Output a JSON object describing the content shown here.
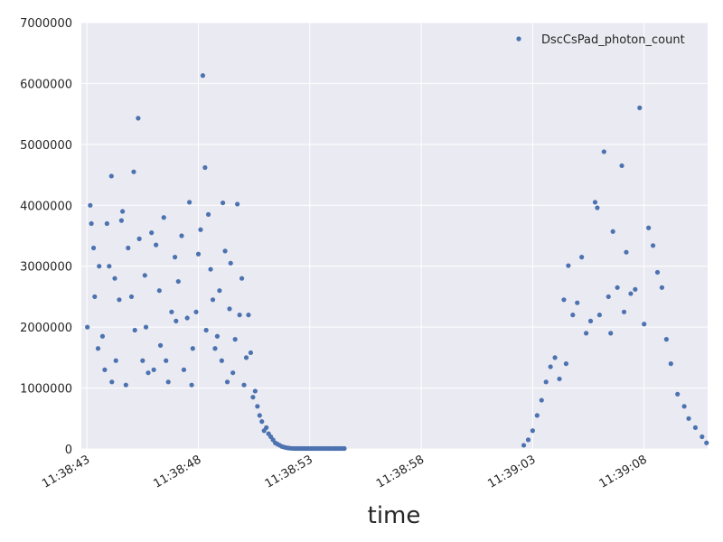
{
  "chart_data": {
    "type": "scatter",
    "title": "",
    "xlabel": "time",
    "ylabel": "",
    "grid": true,
    "legend_placement": "top-right",
    "x_ticks": [
      {
        "t": 0,
        "label": "11:38:43"
      },
      {
        "t": 5,
        "label": "11:38:48"
      },
      {
        "t": 10,
        "label": "11:38:53"
      },
      {
        "t": 15,
        "label": "11:38:58"
      },
      {
        "t": 20,
        "label": "11:39:03"
      },
      {
        "t": 25,
        "label": "11:39:08"
      }
    ],
    "y_ticks": [
      0,
      1000000,
      2000000,
      3000000,
      4000000,
      5000000,
      6000000,
      7000000
    ],
    "y_tick_labels": [
      "0",
      "1000000",
      "2000000",
      "3000000",
      "4000000",
      "5000000",
      "6000000",
      "7000000"
    ],
    "ylim": [
      0,
      7000000
    ],
    "series": [
      {
        "name": "DscCsPad_photon_count",
        "color": "#4c72b0",
        "x_seconds": [
          0.02,
          0.15,
          0.2,
          0.3,
          0.35,
          0.5,
          0.55,
          0.7,
          0.8,
          0.9,
          1.0,
          1.1,
          1.12,
          1.25,
          1.3,
          1.45,
          1.55,
          1.6,
          1.75,
          1.85,
          2.0,
          2.1,
          2.15,
          2.3,
          2.35,
          2.5,
          2.6,
          2.65,
          2.75,
          2.9,
          3.0,
          3.1,
          3.25,
          3.3,
          3.45,
          3.55,
          3.65,
          3.8,
          3.95,
          4.0,
          4.1,
          4.25,
          4.35,
          4.5,
          4.6,
          4.7,
          4.75,
          4.9,
          5.0,
          5.1,
          5.2,
          5.3,
          5.35,
          5.45,
          5.55,
          5.65,
          5.75,
          5.85,
          5.95,
          6.05,
          6.1,
          6.2,
          6.3,
          6.4,
          6.45,
          6.55,
          6.65,
          6.75,
          6.85,
          6.95,
          7.05,
          7.15,
          7.25,
          7.35,
          7.45,
          7.55,
          7.65,
          7.75,
          7.85,
          7.95,
          8.05,
          8.15,
          8.25,
          8.35,
          8.45,
          8.55,
          8.65,
          8.75,
          8.85,
          8.95,
          9.05,
          9.15,
          9.25,
          9.35,
          9.45,
          9.55,
          9.65,
          9.75,
          9.85,
          9.95,
          10.05,
          10.15,
          10.25,
          10.35,
          10.45,
          10.55,
          10.65,
          10.75,
          10.85,
          10.95,
          11.05,
          11.15,
          11.25,
          11.35,
          11.45,
          11.55,
          19.6,
          19.8,
          20.0,
          20.2,
          20.4,
          20.6,
          20.8,
          21.0,
          21.2,
          21.4,
          21.5,
          21.6,
          21.8,
          22.0,
          22.2,
          22.4,
          22.6,
          22.8,
          22.9,
          23.0,
          23.2,
          23.4,
          23.5,
          23.6,
          23.8,
          24.0,
          24.1,
          24.2,
          24.4,
          24.6,
          24.8,
          25.0,
          25.2,
          25.4,
          25.6,
          25.8,
          26.0,
          26.2,
          26.5,
          26.8,
          27.0,
          27.3,
          27.6,
          27.8
        ],
        "y": [
          2000000,
          4000000,
          3700000,
          3300000,
          2500000,
          1650000,
          3000000,
          1850000,
          1300000,
          3700000,
          3000000,
          4480000,
          1100000,
          2800000,
          1450000,
          2450000,
          3750000,
          3900000,
          1050000,
          3300000,
          2500000,
          4550000,
          1950000,
          5430000,
          3450000,
          1450000,
          2850000,
          2000000,
          1250000,
          3550000,
          1300000,
          3350000,
          2600000,
          1700000,
          3800000,
          1450000,
          1100000,
          2250000,
          3150000,
          2100000,
          2750000,
          3500000,
          1300000,
          2150000,
          4050000,
          1050000,
          1650000,
          2250000,
          3200000,
          3600000,
          6130000,
          4620000,
          1950000,
          3850000,
          2950000,
          2450000,
          1650000,
          1850000,
          2600000,
          1450000,
          4040000,
          3250000,
          1100000,
          2300000,
          3050000,
          1250000,
          1800000,
          4020000,
          2200000,
          2800000,
          1050000,
          1500000,
          2200000,
          1580000,
          850000,
          950000,
          700000,
          550000,
          450000,
          300000,
          350000,
          250000,
          200000,
          150000,
          100000,
          80000,
          60000,
          40000,
          30000,
          20000,
          15000,
          10000,
          8000,
          6000,
          4000,
          3000,
          2000,
          1500,
          1000,
          900,
          800,
          700,
          600,
          500,
          400,
          300,
          250,
          200,
          150,
          120,
          100,
          80,
          60,
          40,
          20,
          10,
          60000,
          150000,
          300000,
          550000,
          800000,
          1100000,
          1350000,
          1500000,
          1150000,
          2450000,
          1400000,
          3010000,
          2200000,
          2400000,
          3150000,
          1900000,
          2100000,
          4050000,
          3960000,
          2200000,
          4880000,
          2500000,
          1900000,
          3570000,
          2650000,
          4650000,
          2250000,
          3230000,
          2550000,
          2620000,
          5600000,
          2050000,
          3630000,
          3340000,
          2900000,
          2650000,
          1800000,
          1400000,
          900000,
          700000,
          500000,
          350000,
          200000,
          100000
        ]
      }
    ]
  }
}
